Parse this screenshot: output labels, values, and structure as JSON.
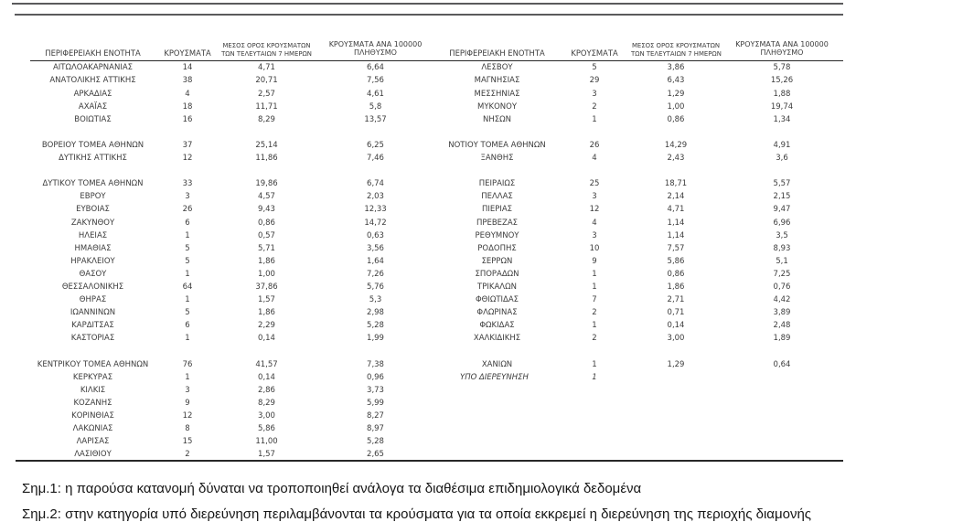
{
  "colors": {
    "rule_gray": "#5a5a5c",
    "line_dark": "#272727",
    "text_color": "#3c3c3c"
  },
  "table": {
    "col_headers": {
      "region": "ΠΕΡΙΦΕΡΕΙΑΚΗ ΕΝΟΤΗΤΑ",
      "cases": "ΚΡΟΥΣΜΑΤΑ",
      "avg7_line1": "ΜΕΣΟΣ ΟΡΟΣ ΚΡΟΥΣΜΑΤΩΝ",
      "avg7_line2": "ΤΩΝ ΤΕΛΕΥΤΑΙΩΝ 7 ΗΜΕΡΩΝ",
      "per100k_line1": "ΚΡΟΥΣΜΑΤΑ ΑΝΑ 100000",
      "per100k_line2": "ΠΛΗΘΥΣΜΟ"
    },
    "left_rows": [
      {
        "region": "ΑΙΤΩΛΟΑΚΑΡΝΑΝΙΑΣ",
        "cases": "14",
        "avg7": "4,71",
        "per100k": "6,64"
      },
      {
        "region": "ΑΝΑΤΟΛΙΚΗΣ ΑΤΤΙΚΗΣ",
        "cases": "38",
        "avg7": "20,71",
        "per100k": "7,56"
      },
      {
        "region": "ΑΡΚΑΔΙΑΣ",
        "cases": "4",
        "avg7": "2,57",
        "per100k": "4,61"
      },
      {
        "region": "ΑΧΑΪΑΣ",
        "cases": "18",
        "avg7": "11,71",
        "per100k": "5,8"
      },
      {
        "region": "ΒΟΙΩΤΙΑΣ",
        "cases": "16",
        "avg7": "8,29",
        "per100k": "13,57"
      },
      null,
      {
        "region": "ΒΟΡΕΙΟΥ ΤΟΜΕΑ ΑΘΗΝΩΝ",
        "cases": "37",
        "avg7": "25,14",
        "per100k": "6,25"
      },
      {
        "region": "ΔΥΤΙΚΗΣ ΑΤΤΙΚΗΣ",
        "cases": "12",
        "avg7": "11,86",
        "per100k": "7,46"
      },
      null,
      {
        "region": "ΔΥΤΙΚΟΥ ΤΟΜΕΑ ΑΘΗΝΩΝ",
        "cases": "33",
        "avg7": "19,86",
        "per100k": "6,74"
      },
      {
        "region": "ΕΒΡΟΥ",
        "cases": "3",
        "avg7": "4,57",
        "per100k": "2,03"
      },
      {
        "region": "ΕΥΒΟΙΑΣ",
        "cases": "26",
        "avg7": "9,43",
        "per100k": "12,33"
      },
      {
        "region": "ΖΑΚΥΝΘΟΥ",
        "cases": "6",
        "avg7": "0,86",
        "per100k": "14,72"
      },
      {
        "region": "ΗΛΕΙΑΣ",
        "cases": "1",
        "avg7": "0,57",
        "per100k": "0,63"
      },
      {
        "region": "ΗΜΑΘΙΑΣ",
        "cases": "5",
        "avg7": "5,71",
        "per100k": "3,56"
      },
      {
        "region": "ΗΡΑΚΛΕΙΟΥ",
        "cases": "5",
        "avg7": "1,86",
        "per100k": "1,64"
      },
      {
        "region": "ΘΑΣΟΥ",
        "cases": "1",
        "avg7": "1,00",
        "per100k": "7,26"
      },
      {
        "region": "ΘΕΣΣΑΛΟΝΙΚΗΣ",
        "cases": "64",
        "avg7": "37,86",
        "per100k": "5,76"
      },
      {
        "region": "ΘΗΡΑΣ",
        "cases": "1",
        "avg7": "1,57",
        "per100k": "5,3"
      },
      {
        "region": "ΙΩΑΝΝΙΝΩΝ",
        "cases": "5",
        "avg7": "1,86",
        "per100k": "2,98"
      },
      {
        "region": "ΚΑΡΔΙΤΣΑΣ",
        "cases": "6",
        "avg7": "2,29",
        "per100k": "5,28"
      },
      {
        "region": "ΚΑΣΤΟΡΙΑΣ",
        "cases": "1",
        "avg7": "0,14",
        "per100k": "1,99"
      },
      null,
      {
        "region": "ΚΕΝΤΡΙΚΟΥ ΤΟΜΕΑ ΑΘΗΝΩΝ",
        "cases": "76",
        "avg7": "41,57",
        "per100k": "7,38"
      },
      {
        "region": "ΚΕΡΚΥΡΑΣ",
        "cases": "1",
        "avg7": "0,14",
        "per100k": "0,96"
      },
      {
        "region": "ΚΙΛΚΙΣ",
        "cases": "3",
        "avg7": "2,86",
        "per100k": "3,73"
      },
      {
        "region": "ΚΟΖΑΝΗΣ",
        "cases": "9",
        "avg7": "8,29",
        "per100k": "5,99"
      },
      {
        "region": "ΚΟΡΙΝΘΙΑΣ",
        "cases": "12",
        "avg7": "3,00",
        "per100k": "8,27"
      },
      {
        "region": "ΛΑΚΩΝΙΑΣ",
        "cases": "8",
        "avg7": "5,86",
        "per100k": "8,97"
      },
      {
        "region": "ΛΑΡΙΣΑΣ",
        "cases": "15",
        "avg7": "11,00",
        "per100k": "5,28"
      },
      {
        "region": "ΛΑΣΙΘΙΟΥ",
        "cases": "2",
        "avg7": "1,57",
        "per100k": "2,65"
      }
    ],
    "right_rows": [
      {
        "region": "ΛΕΣΒΟΥ",
        "cases": "5",
        "avg7": "3,86",
        "per100k": "5,78"
      },
      {
        "region": "ΜΑΓΝΗΣΙΑΣ",
        "cases": "29",
        "avg7": "6,43",
        "per100k": "15,26"
      },
      {
        "region": "ΜΕΣΣΗΝΙΑΣ",
        "cases": "3",
        "avg7": "1,29",
        "per100k": "1,88"
      },
      {
        "region": "ΜΥΚΟΝΟΥ",
        "cases": "2",
        "avg7": "1,00",
        "per100k": "19,74"
      },
      {
        "region": "ΝΗΣΩΝ",
        "cases": "1",
        "avg7": "0,86",
        "per100k": "1,34"
      },
      null,
      {
        "region": "ΝΟΤΙΟΥ ΤΟΜΕΑ ΑΘΗΝΩΝ",
        "cases": "26",
        "avg7": "14,29",
        "per100k": "4,91"
      },
      {
        "region": "ΞΑΝΘΗΣ",
        "cases": "4",
        "avg7": "2,43",
        "per100k": "3,6"
      },
      null,
      {
        "region": "ΠΕΙΡΑΙΩΣ",
        "cases": "25",
        "avg7": "18,71",
        "per100k": "5,57"
      },
      {
        "region": "ΠΕΛΛΑΣ",
        "cases": "3",
        "avg7": "2,14",
        "per100k": "2,15"
      },
      {
        "region": "ΠΙΕΡΙΑΣ",
        "cases": "12",
        "avg7": "4,71",
        "per100k": "9,47"
      },
      {
        "region": "ΠΡΕΒΕΖΑΣ",
        "cases": "4",
        "avg7": "1,14",
        "per100k": "6,96"
      },
      {
        "region": "ΡΕΘΥΜΝΟΥ",
        "cases": "3",
        "avg7": "1,14",
        "per100k": "3,5"
      },
      {
        "region": "ΡΟΔΟΠΗΣ",
        "cases": "10",
        "avg7": "7,57",
        "per100k": "8,93"
      },
      {
        "region": "ΣΕΡΡΩΝ",
        "cases": "9",
        "avg7": "5,86",
        "per100k": "5,1"
      },
      {
        "region": "ΣΠΟΡΑΔΩΝ",
        "cases": "1",
        "avg7": "0,86",
        "per100k": "7,25"
      },
      {
        "region": "ΤΡΙΚΑΛΩΝ",
        "cases": "1",
        "avg7": "1,86",
        "per100k": "0,76"
      },
      {
        "region": "ΦΘΙΩΤΙΔΑΣ",
        "cases": "7",
        "avg7": "2,71",
        "per100k": "4,42"
      },
      {
        "region": "ΦΛΩΡΙΝΑΣ",
        "cases": "2",
        "avg7": "0,71",
        "per100k": "3,89"
      },
      {
        "region": "ΦΩΚΙΔΑΣ",
        "cases": "1",
        "avg7": "0,14",
        "per100k": "2,48"
      },
      {
        "region": "ΧΑΛΚΙΔΙΚΗΣ",
        "cases": "2",
        "avg7": "3,00",
        "per100k": "1,89"
      },
      null,
      {
        "region": "ΧΑΝΙΩΝ",
        "cases": "1",
        "avg7": "1,29",
        "per100k": "0,64"
      },
      {
        "region": "ΥΠΟ ΔΙΕΡΕΥΝΗΣΗ",
        "cases": "1",
        "avg7": "",
        "per100k": "",
        "italic": true
      }
    ]
  },
  "notes": {
    "note1": "Σημ.1: η παρούσα κατανομή δύναται να τροποποιηθεί ανάλογα τα διαθέσιμα επιδημιολογικά δεδομένα",
    "note2_partial": "Σημ.2: στην κατηγορία υπό διερεύνηση περιλαμβάνονται τα κρούσματα για τα οποία εκκρεμεί η διερεύνηση της περιοχής διαμονής"
  }
}
